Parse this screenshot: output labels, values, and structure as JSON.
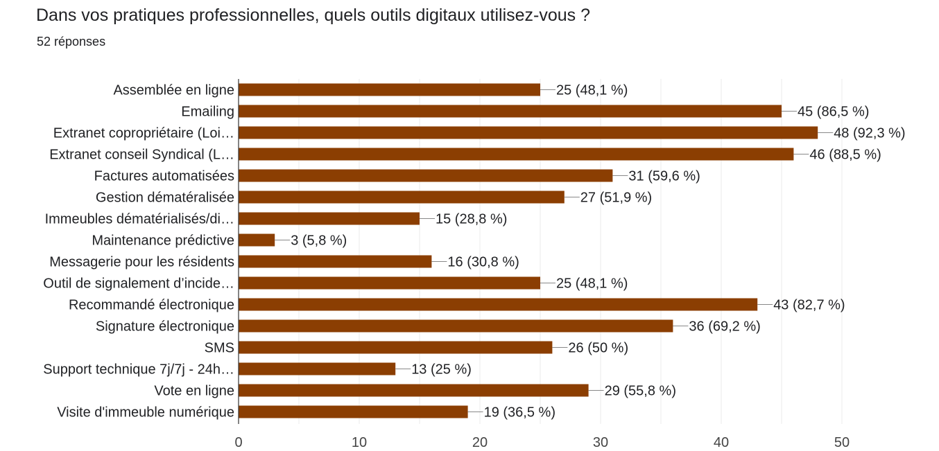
{
  "header": {
    "title": "Dans vos pratiques professionnelles, quels outils digitaux utilisez-vous ?",
    "subtitle": "52 réponses"
  },
  "colors": {
    "bar": "#8B3E02",
    "grid": "#ebebeb",
    "axis": "#333333",
    "text": "#202124"
  },
  "chart_data": {
    "type": "bar",
    "orientation": "horizontal",
    "categories": [
      "Assemblée en ligne",
      "Emailing",
      "Extranet copropriétaire (Loi…",
      "Extranet conseil Syndical (L…",
      "Factures automatisées",
      "Gestion dématéralisée",
      "Immeubles dématérialisés/di…",
      "Maintenance prédictive",
      "Messagerie pour les résidents",
      "Outil de signalement d’incide…",
      "Recommandé électronique",
      "Signature électronique",
      "SMS",
      "Support technique 7j/7j - 24h…",
      "Vote en ligne",
      "Visite d'immeuble numérique"
    ],
    "values": [
      25,
      45,
      48,
      46,
      31,
      27,
      15,
      3,
      16,
      25,
      43,
      36,
      26,
      13,
      29,
      19
    ],
    "data_labels": [
      "25 (48,1 %)",
      "45 (86,5 %)",
      "48 (92,3 %)",
      "46 (88,5 %)",
      "31 (59,6 %)",
      "27 (51,9 %)",
      "15 (28,8 %)",
      "3 (5,8 %)",
      "16 (30,8 %)",
      "25 (48,1 %)",
      "43 (82,7 %)",
      "36 (69,2 %)",
      "26 (50 %)",
      "13 (25 %)",
      "29 (55,8 %)",
      "19 (36,5 %)"
    ],
    "xlim": [
      0,
      50
    ],
    "xticks": [
      0,
      10,
      20,
      30,
      40,
      50
    ],
    "grid": true,
    "legend": "none"
  }
}
